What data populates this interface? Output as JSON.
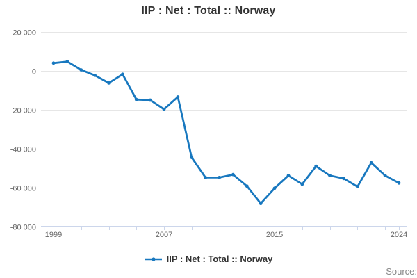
{
  "chart_data": {
    "type": "line",
    "title": "IIP : Net : Total :: Norway",
    "x": [
      1999,
      2000,
      2001,
      2002,
      2003,
      2004,
      2005,
      2006,
      2007,
      2008,
      2009,
      2010,
      2011,
      2012,
      2013,
      2014,
      2015,
      2016,
      2017,
      2018,
      2019,
      2020,
      2021,
      2022,
      2023,
      2024
    ],
    "series": [
      {
        "name": "IIP : Net : Total :: Norway",
        "color": "#1878bf",
        "values": [
          4000,
          4800,
          500,
          -2300,
          -6200,
          -1700,
          -14700,
          -15000,
          -19700,
          -13400,
          -44500,
          -54800,
          -54800,
          -53300,
          -59200,
          -68100,
          -60300,
          -53800,
          -58200,
          -49000,
          -53800,
          -55300,
          -59500,
          -47200,
          -53800,
          -57600
        ]
      }
    ],
    "x_axis": {
      "range": [
        1999,
        2024
      ],
      "tick_years": [
        1999,
        2001,
        2003,
        2005,
        2007,
        2009,
        2011,
        2013,
        2015,
        2017,
        2019,
        2021,
        2023,
        2024
      ],
      "label_years": [
        "1999",
        "2007",
        "2015",
        "2024"
      ]
    },
    "y_axis": {
      "range": [
        -80000,
        20000
      ],
      "ticks": [
        {
          "value": 20000,
          "label": "20 000"
        },
        {
          "value": 0,
          "label": "0"
        },
        {
          "value": -20000,
          "label": "-20 000"
        },
        {
          "value": -40000,
          "label": "-40 000"
        },
        {
          "value": -60000,
          "label": "-60 000"
        },
        {
          "value": -80000,
          "label": "-80 000"
        }
      ]
    },
    "grid": "horizontal",
    "legend_position": "bottom"
  },
  "footer": {
    "source_label": "Source:"
  },
  "colors": {
    "line": "#1878bf",
    "gridline": "#e6e6e6",
    "axis_line": "#ccd6eb",
    "axis_label": "#666666",
    "title_text": "#333333",
    "legend_text": "#333333",
    "source_text": "#888888"
  }
}
